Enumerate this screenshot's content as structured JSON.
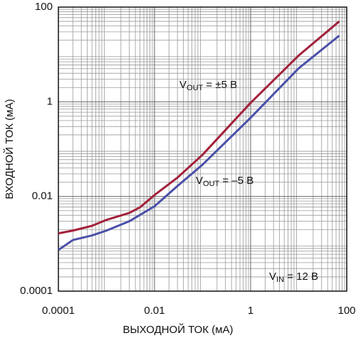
{
  "chart_data": {
    "type": "line",
    "x_label": "ВЫХОДНОЙ ТОК (мА)",
    "y_label": "ВХОДНОЙ ТОК (мА)",
    "xscale": "log",
    "yscale": "log",
    "grid": true,
    "minor_grid": true,
    "xlim": [
      0.0001,
      100
    ],
    "ylim": [
      0.0001,
      100
    ],
    "xticks": [
      0.0001,
      0.01,
      1,
      100
    ],
    "yticks": [
      0.0001,
      0.01,
      1,
      100
    ],
    "series": [
      {
        "color": "#a3203a",
        "x": [
          0.0001,
          0.0002,
          0.0005,
          0.001,
          0.003,
          0.005,
          0.01,
          0.03,
          0.1,
          1,
          10,
          70
        ],
        "values": [
          0.00166,
          0.0019,
          0.0024,
          0.0032,
          0.0045,
          0.0059,
          0.0107,
          0.025,
          0.076,
          0.95,
          9.5,
          50
        ]
      },
      {
        "color": "#4a4fa8",
        "x": [
          0.0001,
          0.0002,
          0.0005,
          0.001,
          0.003,
          0.01,
          0.03,
          0.1,
          1,
          10,
          70
        ],
        "values": [
          0.00074,
          0.0012,
          0.0015,
          0.0019,
          0.003,
          0.0062,
          0.0166,
          0.047,
          0.46,
          5.1,
          25
        ]
      }
    ],
    "annotations": [
      {
        "main": "V",
        "sub": "OUT",
        "rest": " = ±5 В"
      },
      {
        "main": "V",
        "sub": "OUT",
        "rest": " = –5 В"
      },
      {
        "main": "V",
        "sub": "IN",
        "rest": " = 12 В"
      }
    ]
  }
}
